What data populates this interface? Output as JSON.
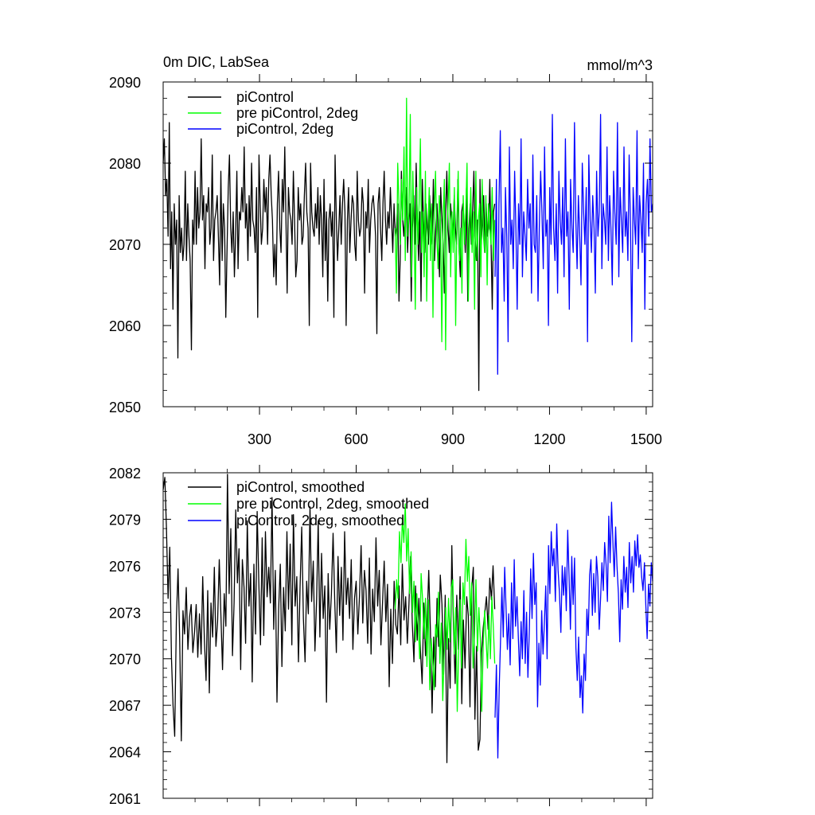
{
  "chart_data": [
    {
      "type": "line",
      "title": "0m DIC, LabSea",
      "units": "mmol/m^3",
      "ylim": [
        2050,
        2090
      ],
      "xlim": [
        1,
        1520
      ],
      "yticks": [
        2050,
        2060,
        2070,
        2080,
        2090
      ],
      "yticklabels": [
        "2050",
        "2060",
        "2070",
        "2080",
        "2090"
      ],
      "xticks": [
        300,
        600,
        900,
        1200,
        1500
      ],
      "xticklabels": [
        "300",
        "600",
        "900",
        "1200",
        "1500"
      ],
      "grid": false,
      "legend": "top-left",
      "series": [
        {
          "name": "piControl",
          "color": "#000000",
          "x_start": 1,
          "x_end": 1030,
          "values": [
            2080,
            2083,
            2076,
            2078,
            2071,
            2085,
            2067,
            2074,
            2062,
            2075,
            2070,
            2073,
            2056,
            2076,
            2069,
            2072,
            2068,
            2070,
            2079,
            2068,
            2075,
            2071,
            2068,
            2057,
            2073,
            2070,
            2079,
            2070,
            2077,
            2072,
            2074,
            2083,
            2073,
            2076,
            2067,
            2075,
            2074,
            2077,
            2070,
            2072,
            2081,
            2068,
            2073,
            2074,
            2076,
            2071,
            2065,
            2079,
            2068,
            2075,
            2072,
            2061,
            2069,
            2077,
            2081,
            2072,
            2069,
            2074,
            2066,
            2071,
            2079,
            2067,
            2074,
            2073,
            2077,
            2074,
            2082,
            2072,
            2075,
            2068,
            2076,
            2071,
            2080,
            2073,
            2072,
            2069,
            2077,
            2061,
            2081,
            2075,
            2070,
            2072,
            2078,
            2074,
            2077,
            2070,
            2078,
            2081,
            2076,
            2073,
            2066,
            2070,
            2065,
            2075,
            2079,
            2072,
            2069,
            2078,
            2074,
            2082,
            2073,
            2064,
            2077,
            2074,
            2073,
            2070,
            2079,
            2073,
            2066,
            2068,
            2077,
            2073,
            2075,
            2070,
            2071,
            2076,
            2080,
            2074,
            2072,
            2060,
            2080,
            2074,
            2072,
            2071,
            2075,
            2072,
            2077,
            2070,
            2076,
            2073,
            2066,
            2078,
            2068,
            2074,
            2063,
            2073,
            2075,
            2071,
            2074,
            2061,
            2081,
            2073,
            2068,
            2072,
            2076,
            2070,
            2075,
            2078,
            2074,
            2060,
            2073,
            2077,
            2069,
            2073,
            2076,
            2075,
            2070,
            2068,
            2079,
            2073,
            2071,
            2072,
            2077,
            2075,
            2064,
            2074,
            2072,
            2078,
            2069,
            2073,
            2075,
            2076,
            2074,
            2071,
            2059,
            2075,
            2077,
            2072,
            2068,
            2075,
            2079,
            2073,
            2070,
            2074,
            2072,
            2077,
            2073,
            2069,
            2075,
            2071,
            2072,
            2075,
            2063,
            2068,
            2079,
            2073,
            2071,
            2074,
            2077,
            2069,
            2073,
            2075,
            2063,
            2072,
            2076,
            2070,
            2080,
            2073,
            2068,
            2074,
            2063,
            2078,
            2073,
            2069,
            2075,
            2072,
            2070,
            2076,
            2073,
            2070,
            2078,
            2068,
            2072,
            2075,
            2071,
            2066,
            2077,
            2073,
            2070,
            2064,
            2074,
            2079,
            2072,
            2069,
            2075,
            2073,
            2071,
            2076,
            2072,
            2070,
            2078,
            2069,
            2066,
            2074,
            2075,
            2073,
            2069,
            2077,
            2063,
            2072,
            2075,
            2070,
            2074,
            2079,
            2071,
            2068,
            2073,
            2052,
            2078,
            2070,
            2073,
            2076,
            2069,
            2075,
            2071,
            2072,
            2078,
            2070,
            2062,
            2074,
            2075
          ]
        },
        {
          "name": "pre piControl, 2deg",
          "color": "#00ff00",
          "x_start": 721,
          "x_end": 1030,
          "values": [
            2072,
            2064,
            2080,
            2075,
            2070,
            2078,
            2073,
            2082,
            2068,
            2088,
            2071,
            2074,
            2086,
            2066,
            2079,
            2072,
            2062,
            2077,
            2070,
            2075,
            2083,
            2069,
            2074,
            2066,
            2079,
            2063,
            2072,
            2077,
            2068,
            2075,
            2061,
            2074,
            2079,
            2071,
            2067,
            2076,
            2073,
            2058,
            2073,
            2078,
            2057,
            2071,
            2075,
            2080,
            2066,
            2074,
            2069,
            2077,
            2060,
            2073,
            2079,
            2068,
            2072,
            2064,
            2076,
            2070,
            2074,
            2080,
            2063,
            2071,
            2077,
            2069,
            2074,
            2062,
            2079,
            2068,
            2073,
            2075,
            2066,
            2078,
            2071,
            2069,
            2076,
            2065,
            2075,
            2072,
            2070,
            2077,
            2068,
            2073
          ]
        },
        {
          "name": "piControl, 2deg",
          "color": "#0000ff",
          "x_start": 1031,
          "x_end": 1520,
          "values": [
            2066,
            2078,
            2054,
            2075,
            2084,
            2069,
            2072,
            2063,
            2077,
            2071,
            2058,
            2082,
            2070,
            2073,
            2067,
            2079,
            2072,
            2062,
            2075,
            2070,
            2083,
            2066,
            2074,
            2071,
            2068,
            2078,
            2072,
            2075,
            2064,
            2081,
            2070,
            2069,
            2076,
            2063,
            2072,
            2079,
            2074,
            2067,
            2082,
            2071,
            2073,
            2060,
            2077,
            2070,
            2086,
            2072,
            2068,
            2075,
            2064,
            2079,
            2073,
            2070,
            2077,
            2066,
            2083,
            2071,
            2074,
            2062,
            2078,
            2072,
            2069,
            2085,
            2073,
            2067,
            2076,
            2071,
            2065,
            2080,
            2074,
            2070,
            2077,
            2058,
            2081,
            2073,
            2069,
            2076,
            2072,
            2064,
            2079,
            2071,
            2074,
            2086,
            2067,
            2075,
            2073,
            2070,
            2082,
            2068,
            2076,
            2072,
            2065,
            2079,
            2074,
            2070,
            2085,
            2066,
            2077,
            2073,
            2069,
            2082,
            2071,
            2074,
            2068,
            2081,
            2072,
            2058,
            2077,
            2073,
            2070,
            2084,
            2067,
            2076,
            2073,
            2069,
            2080,
            2062,
            2075,
            2078,
            2071,
            2083,
            2074,
            2075
          ]
        }
      ]
    },
    {
      "type": "line",
      "title": "",
      "ylim": [
        2061,
        2082
      ],
      "xlim": [
        1,
        1520
      ],
      "yticks": [
        2061,
        2064,
        2067,
        2070,
        2073,
        2076,
        2079,
        2082
      ],
      "yticklabels": [
        "2061",
        "2064",
        "2067",
        "2070",
        "2073",
        "2076",
        "2079",
        "2082"
      ],
      "xticks": [
        300,
        600,
        900,
        1200,
        1500
      ],
      "grid": false,
      "legend": "top-left",
      "series": [
        {
          "name": "piControl, smoothed",
          "color": "#000000",
          "x_start": 1,
          "x_end": 1030,
          "values": [
            2080.9,
            2081.7,
            2078.5,
            2073.9,
            2077.2,
            2070.1,
            2067.0,
            2065.0,
            2072.5,
            2075.8,
            2071.4,
            2064.7,
            2073.1,
            2071.6,
            2074.6,
            2070.6,
            2072.7,
            2073.5,
            2070.4,
            2071.7,
            2073.5,
            2070.1,
            2072.9,
            2070.3,
            2075.3,
            2071.2,
            2068.6,
            2074.4,
            2067.8,
            2073.6,
            2071.4,
            2075.9,
            2070.8,
            2072.4,
            2076.4,
            2072.9,
            2069.3,
            2074.2,
            2072.1,
            2081.9,
            2074.2,
            2078.4,
            2070.2,
            2073.6,
            2079.6,
            2074.9,
            2077.1,
            2069.3,
            2076.4,
            2074.6,
            2071.0,
            2078.9,
            2073.4,
            2075.5,
            2068.5,
            2076.1,
            2071.6,
            2079.5,
            2074.9,
            2070.9,
            2077.8,
            2071.5,
            2078.2,
            2074.0,
            2075.9,
            2073.6,
            2080.4,
            2071.9,
            2075.7,
            2067.2,
            2073.2,
            2076.1,
            2069.5,
            2074.6,
            2071.8,
            2078.2,
            2073.2,
            2077.4,
            2070.9,
            2079.3,
            2073.4,
            2075.3,
            2069.8,
            2074.6,
            2078.5,
            2072.6,
            2069.8,
            2075.0,
            2072.9,
            2079.8,
            2073.7,
            2076.3,
            2070.5,
            2073.8,
            2078.9,
            2071.4,
            2076.8,
            2072.6,
            2074.7,
            2067.2,
            2075.5,
            2071.9,
            2074.2,
            2078.1,
            2073.7,
            2070.4,
            2076.6,
            2072.8,
            2075.9,
            2071.2,
            2078.2,
            2073.5,
            2075.2,
            2072.6,
            2076.4,
            2070.6,
            2073.9,
            2075.0,
            2071.6,
            2074.1,
            2077.3,
            2072.3,
            2075.7,
            2074.4,
            2071.0,
            2076.5,
            2070.3,
            2074.5,
            2072.4,
            2077.8,
            2073.4,
            2075.7,
            2070.9,
            2073.7,
            2076.3,
            2072.4,
            2074.8,
            2068.2,
            2073.2,
            2069.7,
            2075.0,
            2072.2,
            2071.6,
            2074.7,
            2070.9,
            2076.1,
            2072.5,
            2074.0,
            2071.0,
            2073.5,
            2076.6,
            2072.3,
            2069.8,
            2074.7,
            2071.2,
            2073.9,
            2070.5,
            2068.4,
            2073.6,
            2070.2,
            2072.4,
            2075.7,
            2071.8,
            2066.5,
            2071.4,
            2068.2,
            2073.9,
            2070.8,
            2075.4,
            2073.5,
            2069.0,
            2074.1,
            2063.3,
            2071.3,
            2068.1,
            2077.3,
            2072.0,
            2068.4,
            2074.1,
            2070.6,
            2075.3,
            2067.1,
            2072.5,
            2069.4,
            2074.0,
            2072.8,
            2066.9,
            2074.5,
            2075.9,
            2066.1,
            2070.8,
            2064.1,
            2064.8,
            2070.4,
            2072.0,
            2073.0,
            2074.0,
            2071.9,
            2075.2,
            2073.8,
            2076.0,
            2073.2
          ]
        },
        {
          "name": "pre piControl, 2deg, smoothed",
          "color": "#00ff00",
          "x_start": 721,
          "x_end": 1030,
          "values": [
            2073.2,
            2075.1,
            2073.9,
            2078.2,
            2076.2,
            2079.1,
            2077.5,
            2080.0,
            2076.3,
            2078.4,
            2074.2,
            2076.9,
            2073.0,
            2075.0,
            2071.1,
            2074.2,
            2072.2,
            2070.0,
            2075.5,
            2073.8,
            2071.3,
            2073.9,
            2069.5,
            2073.8,
            2068.0,
            2071.3,
            2069.8,
            2068.0,
            2072.2,
            2071.4,
            2074.3,
            2069.7,
            2072.3,
            2067.3,
            2070.5,
            2073.3,
            2070.6,
            2073.9,
            2071.1,
            2074.6,
            2075.1,
            2070.3,
            2073.3,
            2066.6,
            2070.6,
            2073.8,
            2069.4,
            2074.9,
            2073.5,
            2077.7,
            2075.0,
            2076.6,
            2072.8,
            2074.9,
            2069.4,
            2071.7,
            2075.1,
            2070.5,
            2073.3,
            2071.3,
            2066.6,
            2070.8,
            2073.1,
            2071.3,
            2069.4,
            2072.8,
            2070.0,
            2074.0,
            2072.1,
            2069.7
          ]
        },
        {
          "name": "piControl, 2deg, smoothed",
          "color": "#0000ff",
          "x_start": 1031,
          "x_end": 1520,
          "values": [
            2066.2,
            2069.6,
            2063.6,
            2068.1,
            2071.2,
            2074.6,
            2071.4,
            2075.9,
            2073.3,
            2070.6,
            2072.9,
            2069.6,
            2074.9,
            2071.3,
            2076.4,
            2072.1,
            2074.0,
            2071.3,
            2068.9,
            2072.4,
            2070.0,
            2074.4,
            2069.7,
            2073.0,
            2068.8,
            2071.9,
            2075.8,
            2072.6,
            2076.8,
            2073.5,
            2074.9,
            2066.9,
            2071.0,
            2068.3,
            2073.1,
            2070.3,
            2072.3,
            2074.7,
            2070.0,
            2077.3,
            2074.2,
            2078.2,
            2076.0,
            2077.1,
            2073.7,
            2078.7,
            2075.7,
            2074.3,
            2071.7,
            2076.0,
            2074.1,
            2075.9,
            2073.1,
            2078.3,
            2075.3,
            2071.9,
            2076.6,
            2073.5,
            2076.5,
            2070.7,
            2068.6,
            2071.4,
            2067.5,
            2068.9,
            2066.5,
            2070.3,
            2068.6,
            2073.2,
            2071.5,
            2075.4,
            2076.4,
            2072.8,
            2075.5,
            2073.0,
            2076.6,
            2075.3,
            2071.9,
            2073.9,
            2076.2,
            2074.4,
            2077.5,
            2076.1,
            2073.7,
            2079.2,
            2076.2,
            2080.1,
            2077.5,
            2075.3,
            2078.5,
            2076.0,
            2074.2,
            2071.1,
            2075.1,
            2073.2,
            2076.6,
            2074.3,
            2075.9,
            2073.3,
            2077.5,
            2074.9,
            2076.6,
            2074.3,
            2077.6,
            2076.0,
            2078.0,
            2075.9,
            2076.7,
            2075.3,
            2074.4,
            2076.2,
            2073.5,
            2071.3,
            2074.8,
            2073.4,
            2076.2,
            2075.0
          ]
        }
      ]
    }
  ]
}
